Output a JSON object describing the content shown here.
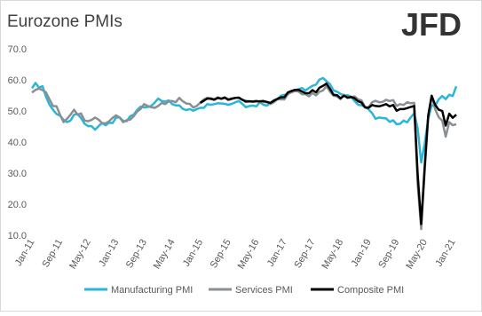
{
  "logo": "JFD",
  "chart_data": {
    "type": "line",
    "title": "Eurozone PMIs",
    "categories": [
      "Jan-11",
      null,
      null,
      null,
      null,
      null,
      null,
      null,
      "Sep-11",
      null,
      null,
      null,
      null,
      null,
      null,
      null,
      "May-12",
      null,
      null,
      null,
      null,
      null,
      null,
      null,
      "Jan-13",
      null,
      null,
      null,
      null,
      null,
      null,
      null,
      "Sep-13",
      null,
      null,
      null,
      null,
      null,
      null,
      null,
      "May-14",
      null,
      null,
      null,
      null,
      null,
      null,
      null,
      "Jan-15",
      null,
      null,
      null,
      null,
      null,
      null,
      null,
      "Sep-15",
      null,
      null,
      null,
      null,
      null,
      null,
      null,
      "May-16",
      null,
      null,
      null,
      null,
      null,
      null,
      null,
      "Jan-17",
      null,
      null,
      null,
      null,
      null,
      null,
      null,
      "Sep-17",
      null,
      null,
      null,
      null,
      null,
      null,
      null,
      "May-18",
      null,
      null,
      null,
      null,
      null,
      null,
      null,
      "Jan-19",
      null,
      null,
      null,
      null,
      null,
      null,
      null,
      "Sep-19",
      null,
      null,
      null,
      null,
      null,
      null,
      null,
      "May-20",
      null,
      null,
      null,
      null,
      null,
      null,
      null,
      "Jan-21",
      null
    ],
    "series": [
      {
        "name": "Manufacturing PMI",
        "color": "#2bb5d8",
        "values": [
          57.3,
          59.0,
          57.5,
          58.0,
          54.6,
          52.0,
          50.4,
          49.0,
          48.5,
          47.1,
          46.4,
          46.9,
          48.8,
          49.0,
          47.7,
          45.9,
          45.1,
          45.1,
          44.0,
          45.1,
          46.1,
          45.4,
          46.2,
          46.1,
          47.9,
          47.9,
          46.8,
          46.7,
          48.3,
          48.8,
          50.3,
          51.4,
          51.1,
          51.3,
          51.6,
          52.7,
          54.0,
          53.2,
          53.0,
          53.4,
          52.2,
          51.8,
          51.8,
          50.7,
          50.3,
          50.6,
          50.1,
          50.6,
          51.0,
          51.0,
          52.2,
          52.0,
          52.2,
          52.5,
          52.4,
          52.3,
          52.0,
          52.3,
          52.8,
          53.2,
          52.3,
          51.2,
          51.6,
          51.7,
          51.5,
          52.8,
          52.0,
          51.7,
          52.6,
          53.5,
          53.7,
          54.9,
          55.2,
          55.4,
          56.2,
          56.7,
          57.0,
          57.4,
          56.6,
          57.4,
          58.1,
          58.5,
          60.1,
          60.6,
          59.6,
          58.6,
          56.6,
          56.2,
          55.5,
          54.9,
          55.1,
          54.6,
          53.2,
          52.0,
          51.8,
          51.4,
          50.5,
          49.3,
          47.5,
          47.9,
          47.7,
          47.6,
          46.5,
          47.0,
          45.7,
          45.9,
          46.9,
          46.3,
          47.9,
          49.2,
          44.5,
          33.4,
          39.4,
          47.4,
          51.8,
          51.7,
          53.7,
          54.8,
          53.8,
          55.2,
          54.8,
          57.9
        ]
      },
      {
        "name": "Services PMI",
        "color": "#8a8f93",
        "values": [
          55.9,
          56.8,
          57.2,
          56.7,
          56.0,
          53.7,
          51.6,
          51.5,
          48.8,
          46.4,
          47.5,
          48.8,
          50.4,
          48.8,
          49.2,
          46.9,
          46.7,
          47.1,
          47.9,
          47.2,
          46.1,
          46.0,
          46.7,
          47.8,
          48.6,
          47.9,
          46.4,
          47.0,
          47.2,
          48.3,
          49.8,
          50.7,
          52.2,
          51.6,
          51.2,
          51.0,
          51.6,
          52.6,
          52.2,
          53.1,
          53.2,
          52.8,
          54.2,
          53.1,
          52.4,
          52.3,
          51.1,
          51.6,
          52.7,
          53.7,
          54.2,
          54.1,
          53.8,
          54.4,
          54.0,
          54.4,
          53.7,
          54.1,
          54.2,
          54.2,
          53.6,
          53.3,
          53.1,
          53.1,
          53.3,
          52.8,
          52.9,
          52.8,
          52.2,
          52.8,
          53.8,
          53.7,
          53.7,
          55.5,
          56.0,
          56.4,
          56.3,
          55.4,
          55.4,
          54.7,
          55.8,
          55.0,
          56.2,
          56.6,
          58.0,
          56.2,
          54.9,
          54.7,
          53.8,
          55.2,
          54.2,
          54.4,
          54.7,
          53.7,
          53.4,
          51.2,
          51.2,
          52.8,
          53.3,
          52.8,
          52.9,
          53.6,
          53.2,
          53.5,
          51.6,
          52.2,
          51.9,
          52.8,
          52.5,
          52.6,
          26.4,
          12.0,
          30.5,
          48.3,
          54.7,
          50.5,
          48.0,
          46.9,
          41.7,
          46.4,
          45.4,
          45.7
        ]
      },
      {
        "name": "Composite PMI",
        "color": "#000000",
        "values": [
          null,
          null,
          null,
          null,
          null,
          null,
          null,
          null,
          null,
          null,
          null,
          null,
          null,
          null,
          null,
          null,
          null,
          null,
          null,
          null,
          null,
          null,
          null,
          null,
          null,
          null,
          null,
          null,
          null,
          null,
          null,
          null,
          null,
          null,
          null,
          null,
          null,
          null,
          null,
          null,
          null,
          null,
          null,
          null,
          null,
          null,
          null,
          null,
          52.6,
          53.3,
          54.0,
          53.9,
          53.6,
          54.2,
          53.9,
          54.3,
          53.6,
          53.9,
          54.2,
          54.3,
          53.6,
          53.0,
          53.1,
          53.0,
          53.1,
          53.1,
          53.2,
          52.9,
          52.6,
          53.3,
          53.9,
          54.4,
          54.4,
          56.0,
          56.4,
          56.8,
          56.8,
          56.3,
          55.7,
          55.7,
          56.7,
          56.0,
          57.5,
          58.1,
          58.8,
          57.1,
          55.2,
          55.1,
          54.1,
          54.9,
          54.3,
          54.5,
          54.1,
          53.1,
          52.7,
          51.1,
          51.0,
          51.9,
          51.6,
          51.5,
          51.8,
          52.2,
          51.5,
          51.9,
          50.1,
          50.6,
          50.6,
          50.9,
          51.3,
          51.6,
          29.7,
          13.6,
          31.9,
          48.5,
          54.9,
          51.9,
          50.4,
          50.0,
          45.3,
          49.1,
          47.8,
          48.8
        ]
      }
    ],
    "ylim": [
      10,
      70
    ],
    "yticks": [
      {
        "value": 10,
        "label": "10.0"
      },
      {
        "value": 20,
        "label": "20.0"
      },
      {
        "value": 30,
        "label": "30.0"
      },
      {
        "value": 40,
        "label": "40.0"
      },
      {
        "value": 50,
        "label": "50.0"
      },
      {
        "value": 60,
        "label": "60.0"
      },
      {
        "value": 70,
        "label": "70.0"
      }
    ],
    "grid": false,
    "legend": "bottom"
  }
}
